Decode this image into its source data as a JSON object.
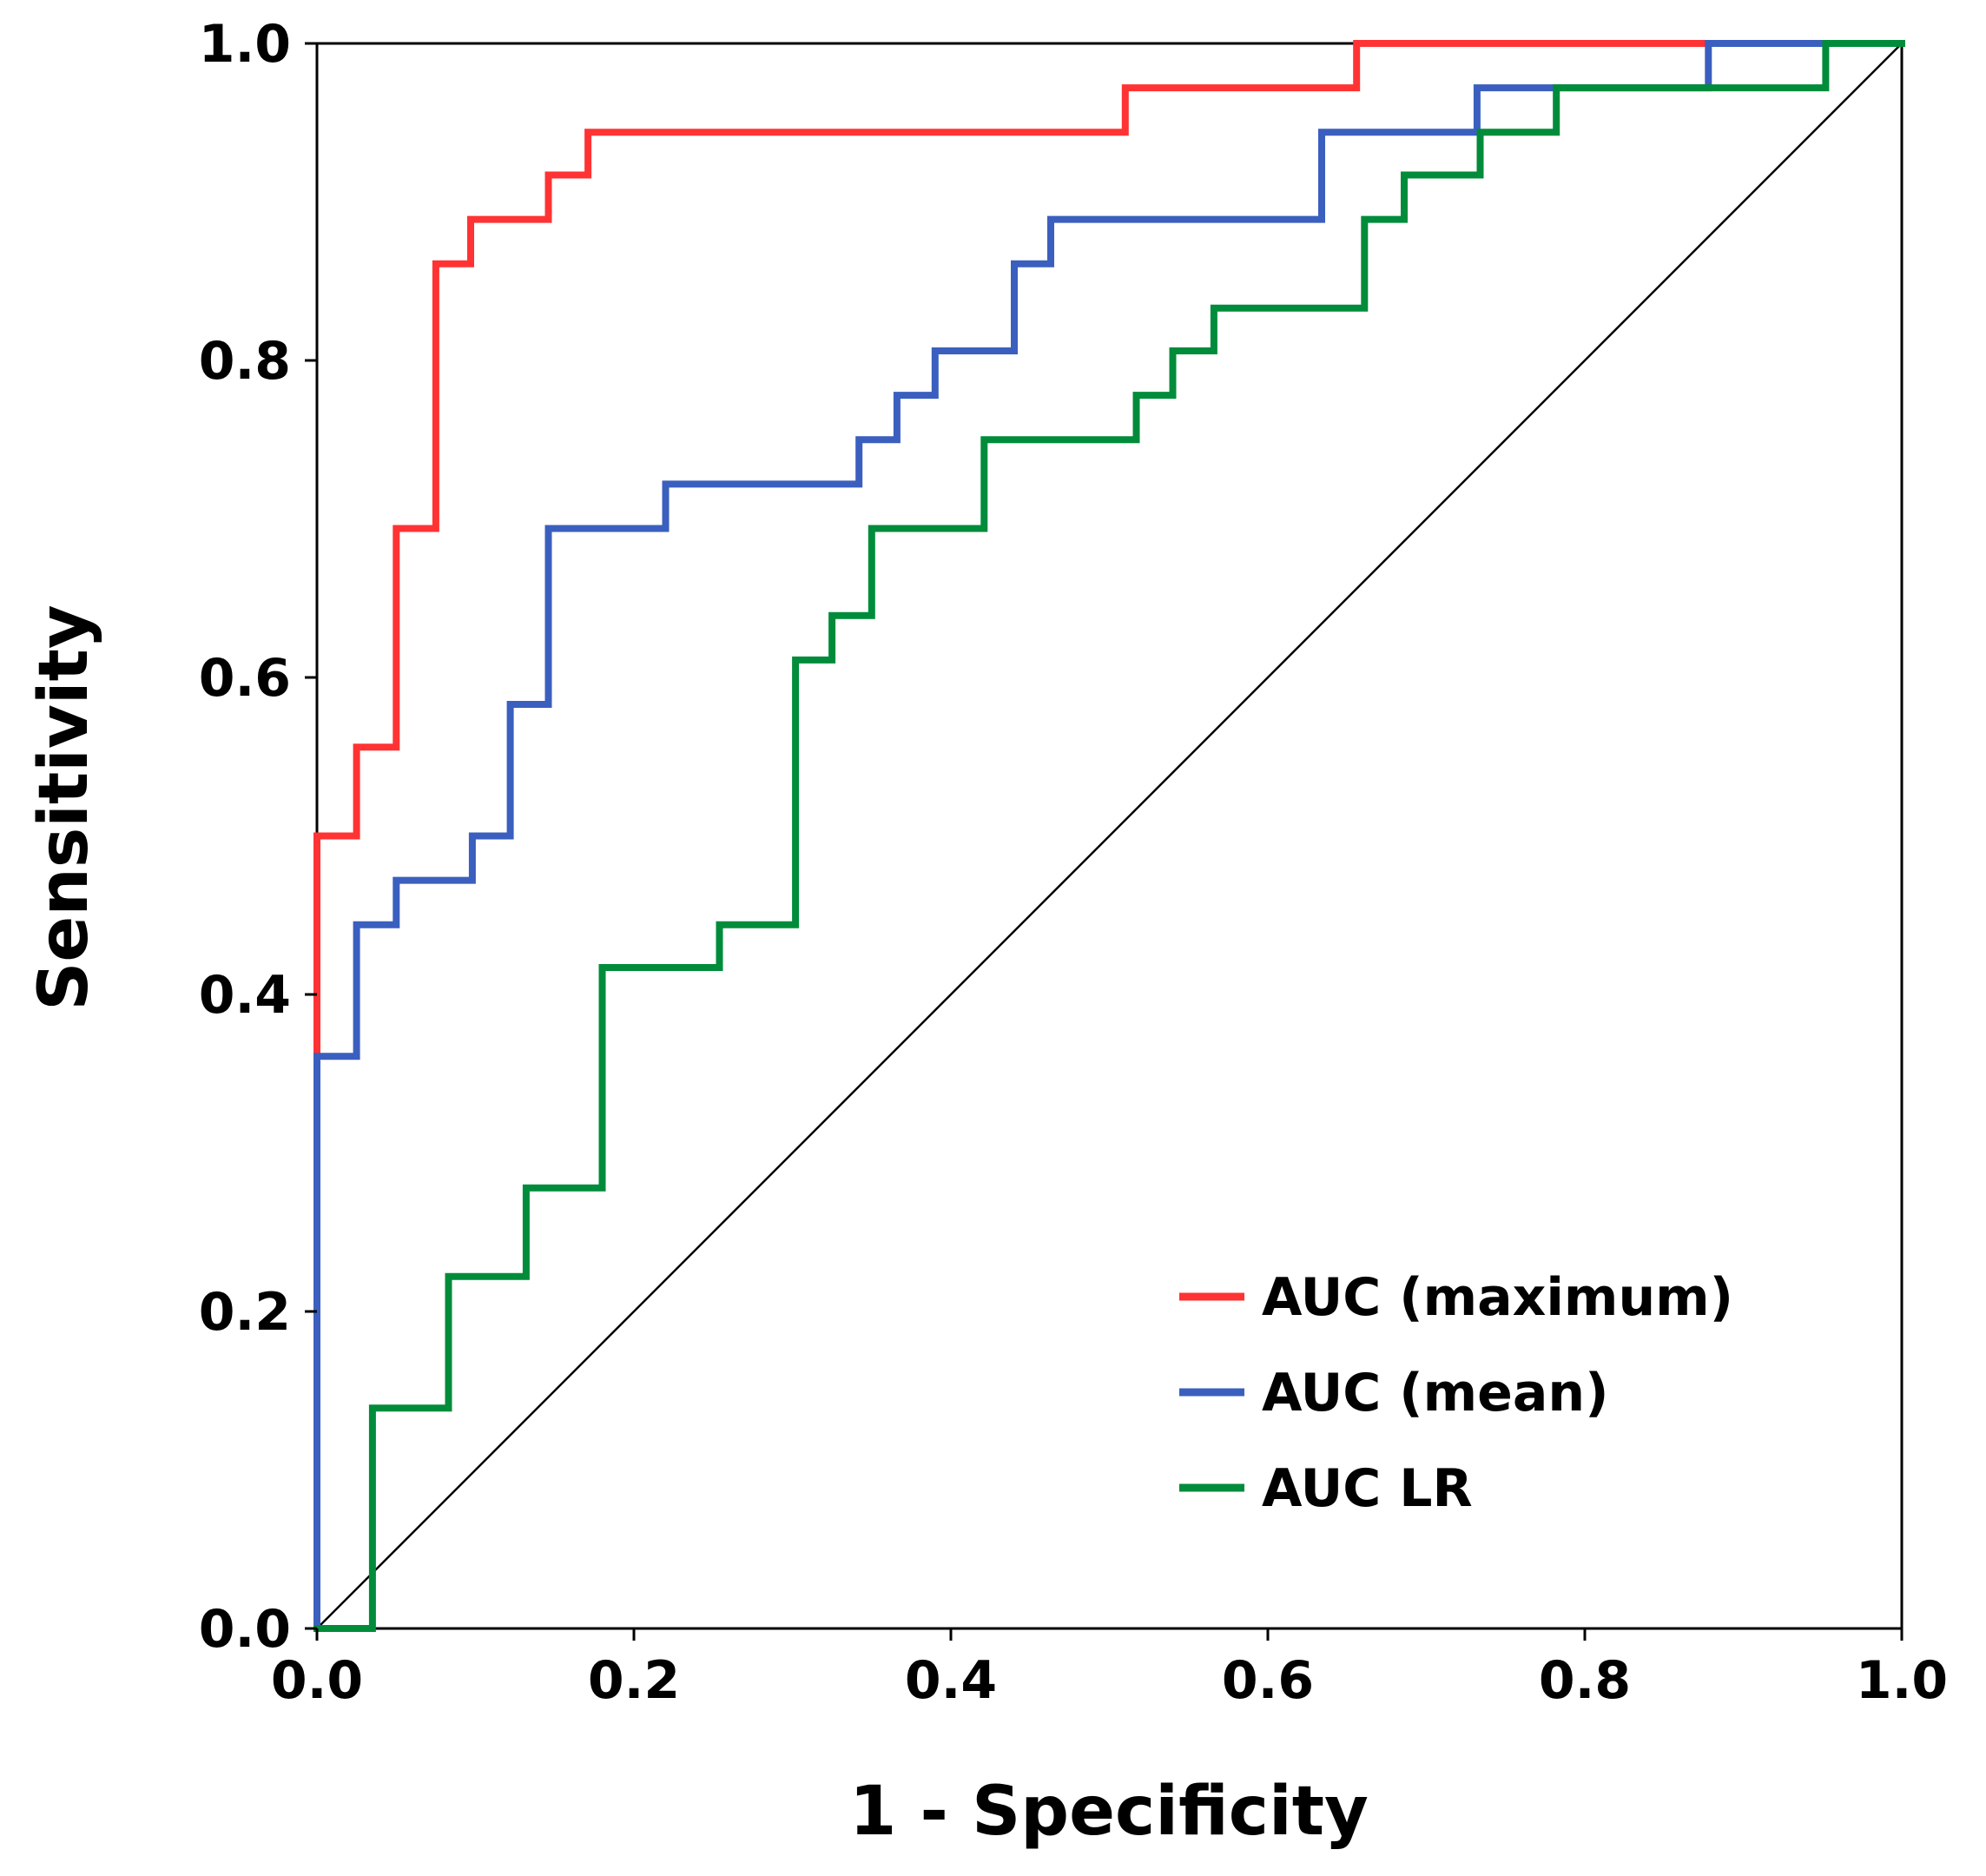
{
  "chart_data": {
    "type": "line",
    "title": "",
    "xlabel": "1 - Specificity",
    "ylabel": "Sensitivity",
    "xlim": [
      0.0,
      1.0
    ],
    "ylim": [
      0.0,
      1.0
    ],
    "xticks": [
      "0.0",
      "0.2",
      "0.4",
      "0.6",
      "0.8",
      "1.0"
    ],
    "yticks": [
      "0.0",
      "0.2",
      "0.4",
      "0.6",
      "0.8",
      "1.0"
    ],
    "tick_values": [
      0.0,
      0.2,
      0.4,
      0.6,
      0.8,
      1.0
    ],
    "grid": false,
    "legend_position": "bottom-right",
    "reference_line": {
      "x": [
        0,
        1
      ],
      "y": [
        0,
        1
      ],
      "color": "#000000"
    },
    "series": [
      {
        "name": "AUC (maximum)",
        "color": "#ff3333",
        "x": [
          0.0,
          0.0,
          0.025,
          0.025,
          0.05,
          0.05,
          0.075,
          0.075,
          0.097,
          0.097,
          0.146,
          0.146,
          0.171,
          0.171,
          0.51,
          0.51,
          0.656,
          0.656,
          1.0
        ],
        "y": [
          0.0,
          0.5,
          0.5,
          0.556,
          0.556,
          0.694,
          0.694,
          0.861,
          0.861,
          0.889,
          0.889,
          0.917,
          0.917,
          0.944,
          0.944,
          0.972,
          0.972,
          1.0,
          1.0
        ]
      },
      {
        "name": "AUC (mean)",
        "color": "#3a5fbf",
        "x": [
          0.0,
          0.0,
          0.025,
          0.025,
          0.05,
          0.05,
          0.098,
          0.098,
          0.122,
          0.122,
          0.146,
          0.146,
          0.22,
          0.22,
          0.342,
          0.342,
          0.366,
          0.366,
          0.39,
          0.39,
          0.44,
          0.44,
          0.463,
          0.463,
          0.634,
          0.634,
          0.732,
          0.732,
          0.878,
          0.878,
          1.0
        ],
        "y": [
          0.0,
          0.361,
          0.361,
          0.444,
          0.444,
          0.472,
          0.472,
          0.5,
          0.5,
          0.583,
          0.583,
          0.694,
          0.694,
          0.722,
          0.722,
          0.75,
          0.75,
          0.778,
          0.778,
          0.806,
          0.806,
          0.861,
          0.861,
          0.889,
          0.889,
          0.944,
          0.944,
          0.972,
          0.972,
          1.0,
          1.0
        ]
      },
      {
        "name": "AUC LR",
        "color": "#008c3a",
        "x": [
          0.0,
          0.035,
          0.035,
          0.083,
          0.083,
          0.132,
          0.132,
          0.18,
          0.18,
          0.254,
          0.254,
          0.302,
          0.302,
          0.325,
          0.325,
          0.35,
          0.35,
          0.421,
          0.421,
          0.517,
          0.517,
          0.54,
          0.54,
          0.566,
          0.566,
          0.661,
          0.661,
          0.686,
          0.686,
          0.734,
          0.734,
          0.782,
          0.782,
          0.952,
          0.952,
          1.0
        ],
        "y": [
          0.0,
          0.0,
          0.139,
          0.139,
          0.222,
          0.222,
          0.278,
          0.278,
          0.417,
          0.417,
          0.444,
          0.444,
          0.611,
          0.611,
          0.639,
          0.639,
          0.694,
          0.694,
          0.75,
          0.75,
          0.778,
          0.778,
          0.806,
          0.806,
          0.833,
          0.833,
          0.889,
          0.889,
          0.917,
          0.917,
          0.944,
          0.944,
          0.972,
          0.972,
          1.0,
          1.0
        ]
      }
    ]
  }
}
